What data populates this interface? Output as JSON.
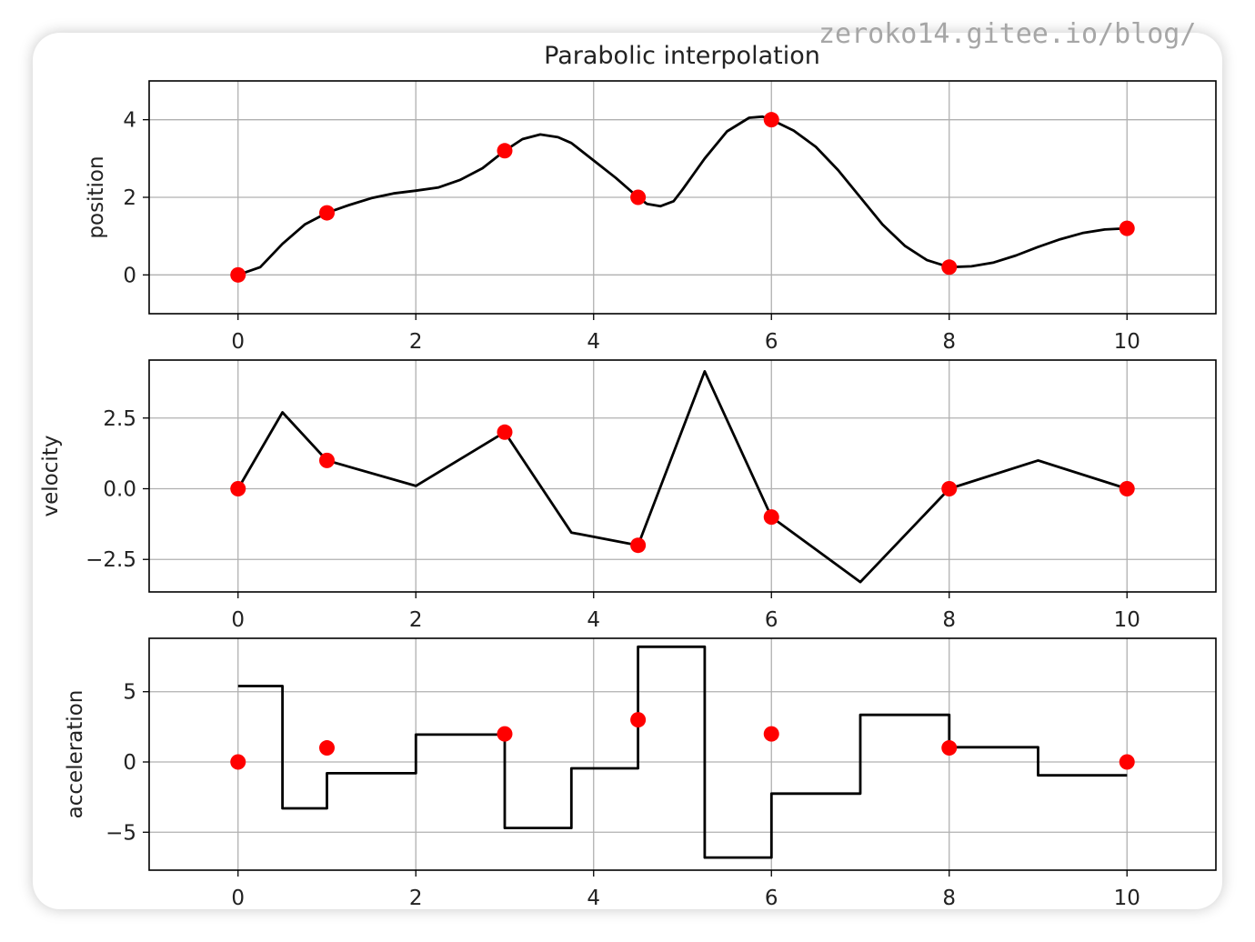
{
  "watermark": "zeroko14.gitee.io/blog/",
  "chart_data": {
    "title": "Parabolic interpolation",
    "colors": {
      "curve": "#000000",
      "points": "#ff0000",
      "grid": "#b0b0b0"
    },
    "grid": true,
    "panels": [
      {
        "name": "position",
        "type": "line",
        "ylabel": "position",
        "xlim": [
          -1,
          11
        ],
        "ylim": [
          -1,
          5
        ],
        "xticks": [
          0,
          2,
          4,
          6,
          8,
          10
        ],
        "xtick_labels": [
          "0",
          "2",
          "4",
          "6",
          "8",
          "10"
        ],
        "yticks": [
          0,
          2,
          4
        ],
        "ytick_labels": [
          "0",
          "2",
          "4"
        ],
        "points": {
          "x": [
            0,
            1,
            3,
            4.5,
            6,
            8,
            10
          ],
          "y": [
            0,
            1.6,
            3.2,
            2.0,
            4.0,
            0.2,
            1.2
          ]
        },
        "curve": {
          "x": [
            0,
            0.25,
            0.5,
            0.75,
            1,
            1.25,
            1.5,
            1.75,
            2,
            2.25,
            2.5,
            2.75,
            3,
            3.2,
            3.4,
            3.6,
            3.75,
            4,
            4.25,
            4.5,
            4.6,
            4.75,
            4.9,
            5.0,
            5.25,
            5.5,
            5.75,
            5.9,
            6,
            6.25,
            6.5,
            6.75,
            7,
            7.25,
            7.5,
            7.75,
            8,
            8.25,
            8.5,
            8.75,
            9,
            9.25,
            9.5,
            9.75,
            10
          ],
          "y": [
            0,
            0.2,
            0.8,
            1.3,
            1.6,
            1.8,
            1.98,
            2.1,
            2.17,
            2.25,
            2.45,
            2.75,
            3.2,
            3.5,
            3.62,
            3.55,
            3.4,
            2.95,
            2.5,
            2.0,
            1.83,
            1.77,
            1.9,
            2.2,
            3.0,
            3.7,
            4.05,
            4.08,
            4.0,
            3.72,
            3.3,
            2.7,
            2.0,
            1.3,
            0.75,
            0.38,
            0.2,
            0.22,
            0.32,
            0.5,
            0.72,
            0.92,
            1.08,
            1.17,
            1.2
          ]
        }
      },
      {
        "name": "velocity",
        "type": "line",
        "ylabel": "velocity",
        "xlim": [
          -1,
          11
        ],
        "ylim": [
          -3.65,
          4.55
        ],
        "xticks": [
          0,
          2,
          4,
          6,
          8,
          10
        ],
        "xtick_labels": [
          "0",
          "2",
          "4",
          "6",
          "8",
          "10"
        ],
        "yticks": [
          -2.5,
          0.0,
          2.5
        ],
        "ytick_labels": [
          "−2.5",
          "0.0",
          "2.5"
        ],
        "points": {
          "x": [
            0,
            1,
            3,
            4.5,
            6,
            8,
            10
          ],
          "y": [
            0,
            1.0,
            2.0,
            -2.0,
            -1.0,
            0,
            0
          ]
        },
        "curve": {
          "x": [
            0,
            0.5,
            1,
            2,
            3,
            3.75,
            4.5,
            5.25,
            6,
            7,
            8,
            9,
            10
          ],
          "y": [
            0,
            2.7,
            1.0,
            0.1,
            2.0,
            -1.55,
            -2.0,
            4.15,
            -1.0,
            -3.3,
            0,
            1.0,
            0
          ]
        }
      },
      {
        "name": "acceleration",
        "type": "step",
        "ylabel": "acceleration",
        "xlim": [
          -1,
          11
        ],
        "ylim": [
          -7.7,
          8.8
        ],
        "xticks": [
          0,
          2,
          4,
          6,
          8,
          10
        ],
        "xtick_labels": [
          "0",
          "2",
          "4",
          "6",
          "8",
          "10"
        ],
        "yticks": [
          -5,
          0,
          5
        ],
        "ytick_labels": [
          "−5",
          "0",
          "5"
        ],
        "points": {
          "x": [
            0,
            1,
            3,
            4.5,
            6,
            8,
            10
          ],
          "y": [
            0,
            1.0,
            2.0,
            3.0,
            2.0,
            1.0,
            0
          ]
        },
        "steps": {
          "edges": [
            0,
            0.5,
            1,
            2,
            3,
            3.75,
            4.5,
            5.25,
            6,
            7,
            8,
            9,
            10
          ],
          "values": [
            5.4,
            -3.3,
            -0.8,
            1.95,
            -4.7,
            -0.45,
            8.2,
            -6.8,
            -2.25,
            3.35,
            1.05,
            -0.95
          ]
        }
      }
    ]
  }
}
